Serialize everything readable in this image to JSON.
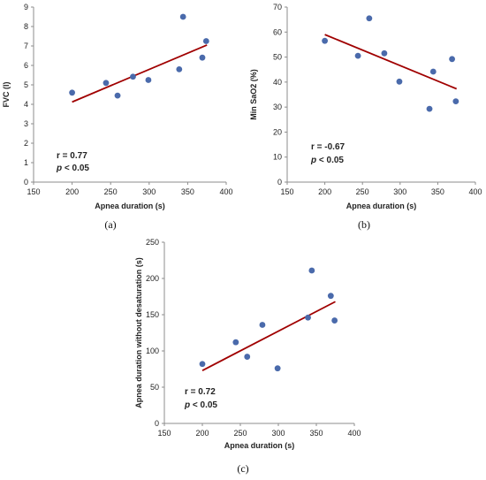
{
  "chart_data": [
    {
      "type": "scatter",
      "panel": "(a)",
      "xlabel": "Apnea duration (s)",
      "ylabel": "FVC (l)",
      "xlim": [
        150,
        400
      ],
      "ylim": [
        0,
        9
      ],
      "xticks": [
        150,
        200,
        250,
        300,
        350,
        400
      ],
      "yticks": [
        0,
        1,
        2,
        3,
        4,
        5,
        6,
        7,
        8,
        9
      ],
      "points": [
        [
          200,
          4.6
        ],
        [
          244,
          5.1
        ],
        [
          259,
          4.45
        ],
        [
          279,
          5.42
        ],
        [
          299,
          5.25
        ],
        [
          339,
          5.8
        ],
        [
          344,
          8.5
        ],
        [
          369,
          6.4
        ],
        [
          374,
          7.25
        ]
      ],
      "trendline": [
        [
          200,
          4.12
        ],
        [
          375,
          7.05
        ]
      ],
      "r_label": "r = 0.77",
      "p_label": "< 0.05",
      "p_symbol": "p",
      "colors": {
        "points": "#4a6aab",
        "trendline": "#a00000"
      }
    },
    {
      "type": "scatter",
      "panel": "(b)",
      "xlabel": "Apnea duration (s)",
      "ylabel": "Min SaO2 (%)",
      "xlim": [
        150,
        400
      ],
      "ylim": [
        0,
        70
      ],
      "xticks": [
        150,
        200,
        250,
        300,
        350,
        400
      ],
      "yticks": [
        0,
        10,
        20,
        30,
        40,
        50,
        60,
        70
      ],
      "points": [
        [
          200,
          56.5
        ],
        [
          244,
          50.5
        ],
        [
          259,
          65.5
        ],
        [
          279,
          51.5
        ],
        [
          299,
          40.2
        ],
        [
          339,
          29.3
        ],
        [
          344,
          44.2
        ],
        [
          369,
          49.2
        ],
        [
          374,
          32.3
        ]
      ],
      "trendline": [
        [
          200,
          59
        ],
        [
          375,
          37.3
        ]
      ],
      "r_label": "r = -0.67",
      "p_label": "< 0.05",
      "p_symbol": "p",
      "colors": {
        "points": "#4a6aab",
        "trendline": "#a00000"
      }
    },
    {
      "type": "scatter",
      "panel": "(c)",
      "xlabel": "Apnea duration (s)",
      "ylabel": "Apnea duration without desaturation (s)",
      "xlim": [
        150,
        400
      ],
      "ylim": [
        0,
        250
      ],
      "xticks": [
        150,
        200,
        250,
        300,
        350,
        400
      ],
      "yticks": [
        0,
        50,
        100,
        150,
        200,
        250
      ],
      "points": [
        [
          200,
          82
        ],
        [
          244,
          112
        ],
        [
          259,
          92
        ],
        [
          279,
          136
        ],
        [
          299,
          76
        ],
        [
          339,
          146
        ],
        [
          344,
          211
        ],
        [
          369,
          176
        ],
        [
          374,
          142
        ]
      ],
      "trendline": [
        [
          200,
          73
        ],
        [
          375,
          168
        ]
      ],
      "r_label": "r = 0.72",
      "p_label": "< 0.05",
      "p_symbol": "p",
      "colors": {
        "points": "#4a6aab",
        "trendline": "#a00000"
      }
    }
  ]
}
